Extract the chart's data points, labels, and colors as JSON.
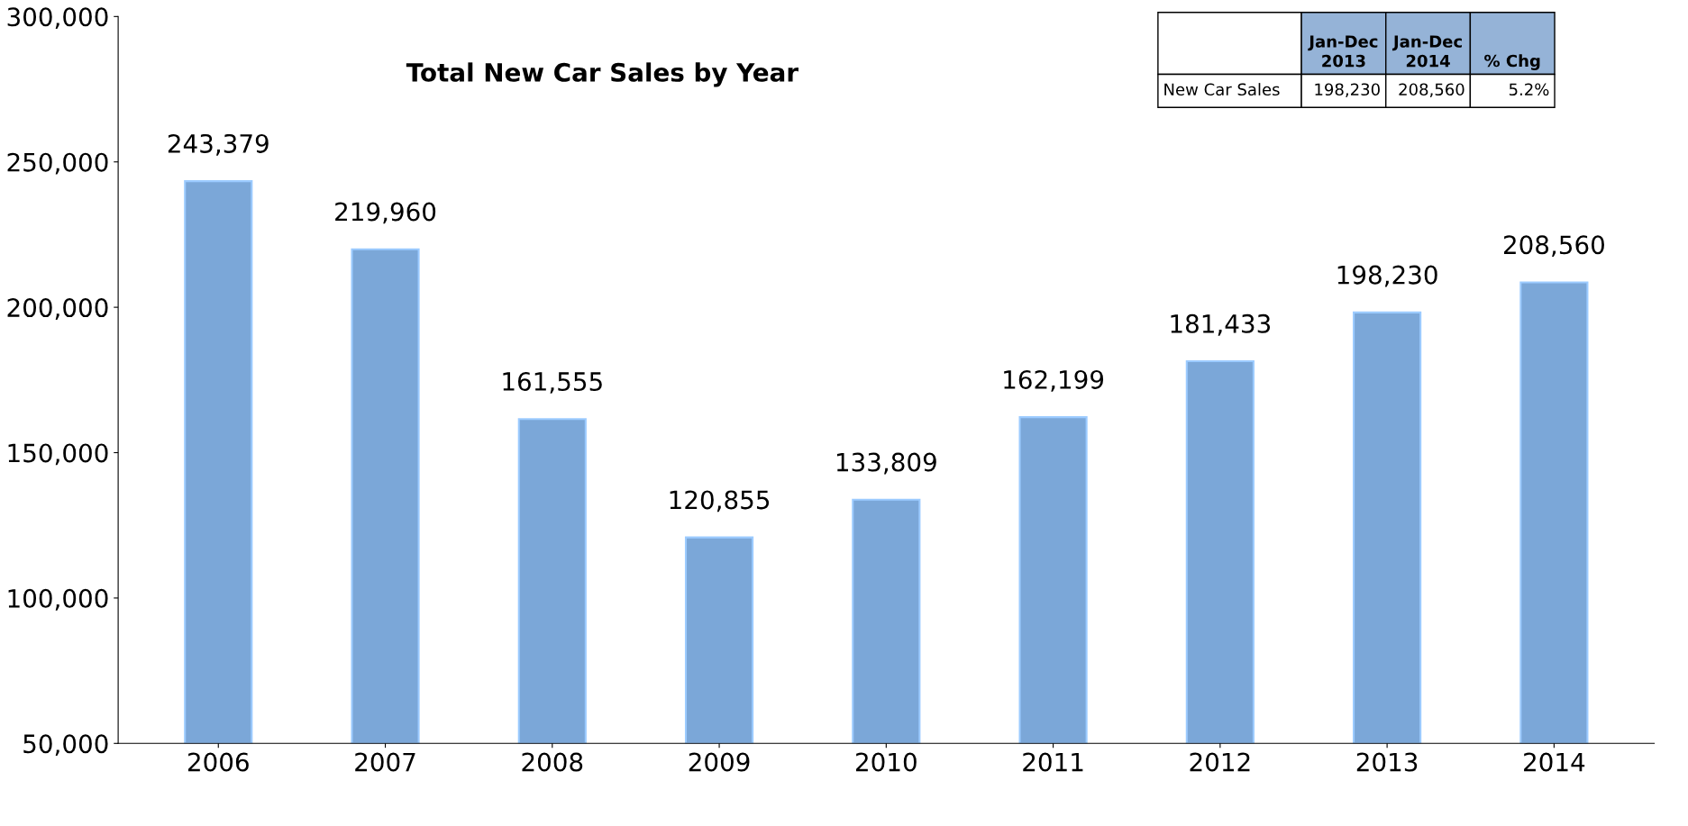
{
  "chart_data": {
    "type": "bar",
    "title": "Total New Car Sales by Year",
    "categories": [
      "2006",
      "2007",
      "2008",
      "2009",
      "2010",
      "2011",
      "2012",
      "2013",
      "2014"
    ],
    "values": [
      243379,
      219960,
      161555,
      120855,
      133809,
      162199,
      181433,
      198230,
      208560
    ],
    "color": "#7ba7d8",
    "grid": false,
    "value_labels": [
      "243,379",
      "219,960",
      "161,555",
      "120,855",
      "133,809",
      "162,199",
      "181,433",
      "198,230",
      "208,560"
    ],
    "ylim": [
      50000,
      300000
    ],
    "yticks": [
      {
        "value": 50000,
        "label": "50,000"
      },
      {
        "value": 100000,
        "label": "100,000"
      },
      {
        "value": 150000,
        "label": "150,000"
      },
      {
        "value": 200000,
        "label": "200,000"
      },
      {
        "value": 250000,
        "label": "250,000"
      },
      {
        "value": 300000,
        "label": "300,000"
      }
    ],
    "annotations": [
      "Jan-Dec\n2013",
      "Jan-Dec\n2014",
      "% Chg",
      "New Car Sales",
      "198,230",
      "208,560",
      "5.2%"
    ]
  }
}
